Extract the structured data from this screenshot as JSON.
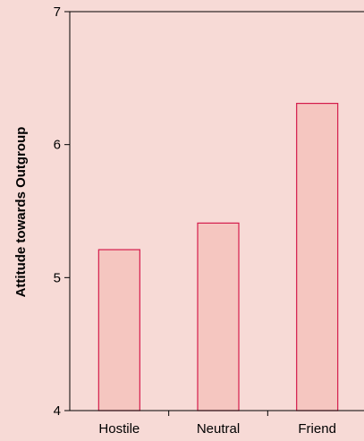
{
  "chart_data": {
    "type": "bar",
    "title": "",
    "xlabel": "",
    "ylabel": "Attitude towards Outgroup",
    "categories": [
      "Hostile",
      "Neutral",
      "Friend"
    ],
    "values": [
      5.21,
      5.41,
      6.31
    ],
    "ylim": [
      4,
      7
    ],
    "yticks": [
      "4",
      "5",
      "6",
      "7"
    ],
    "grid": false,
    "legend": "none",
    "colors": {
      "background": "#f7dad6",
      "bar_fill": "#f5c6c0",
      "bar_stroke": "#d41c4c",
      "axis": "#000000"
    }
  }
}
